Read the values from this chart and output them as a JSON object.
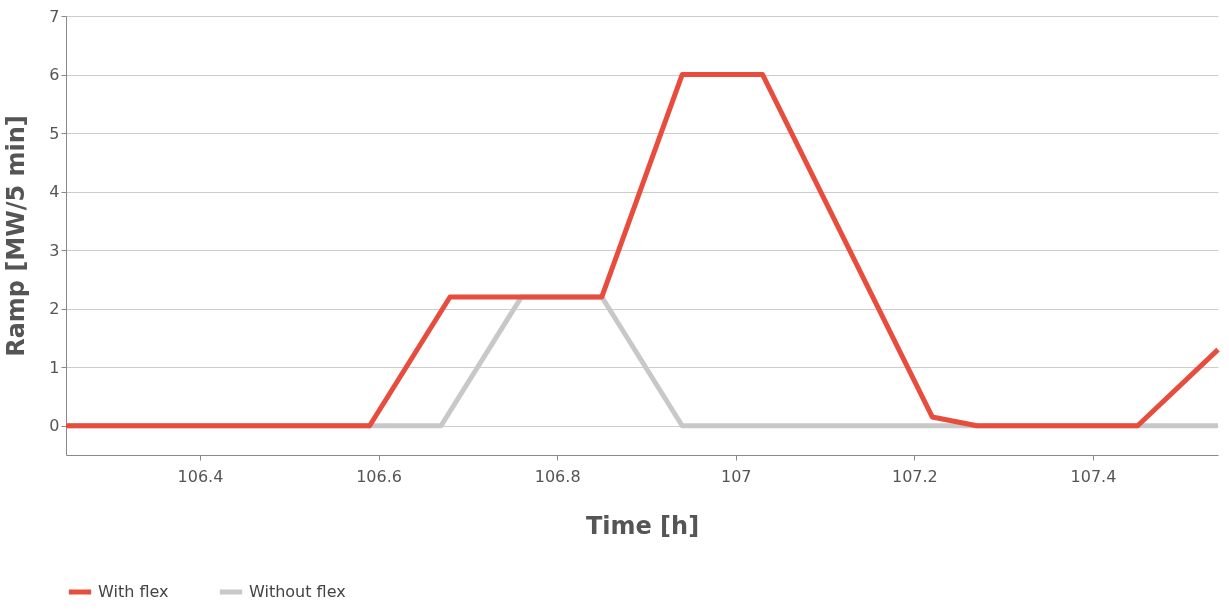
{
  "chart_data": {
    "type": "line",
    "xlabel": "Time [h]",
    "ylabel": "Ramp [MW/5 min]",
    "xlim": [
      106.25,
      107.54
    ],
    "xticks": [
      106.4,
      106.6,
      106.8,
      107,
      107.2,
      107.4
    ],
    "ylim": [
      -0.5,
      7
    ],
    "yticks": [
      0,
      1,
      2,
      3,
      4,
      5,
      6,
      7
    ],
    "grid": "y",
    "legend": "bottom",
    "marker": "none",
    "line_style": "solid",
    "series": [
      {
        "name": "Without flex",
        "color": "#c8c8c8",
        "x": [
          106.25,
          106.67,
          106.76,
          106.85,
          106.94,
          107.54
        ],
        "values": [
          0,
          0,
          2.2,
          2.2,
          0,
          0
        ]
      },
      {
        "name": "With flex",
        "color": "#e84c3d",
        "x": [
          106.25,
          106.59,
          106.68,
          106.85,
          106.94,
          107.03,
          107.22,
          107.27,
          107.45,
          107.54
        ],
        "values": [
          0,
          0,
          2.2,
          2.2,
          6,
          6,
          0.15,
          0,
          0,
          1.3
        ]
      }
    ]
  }
}
